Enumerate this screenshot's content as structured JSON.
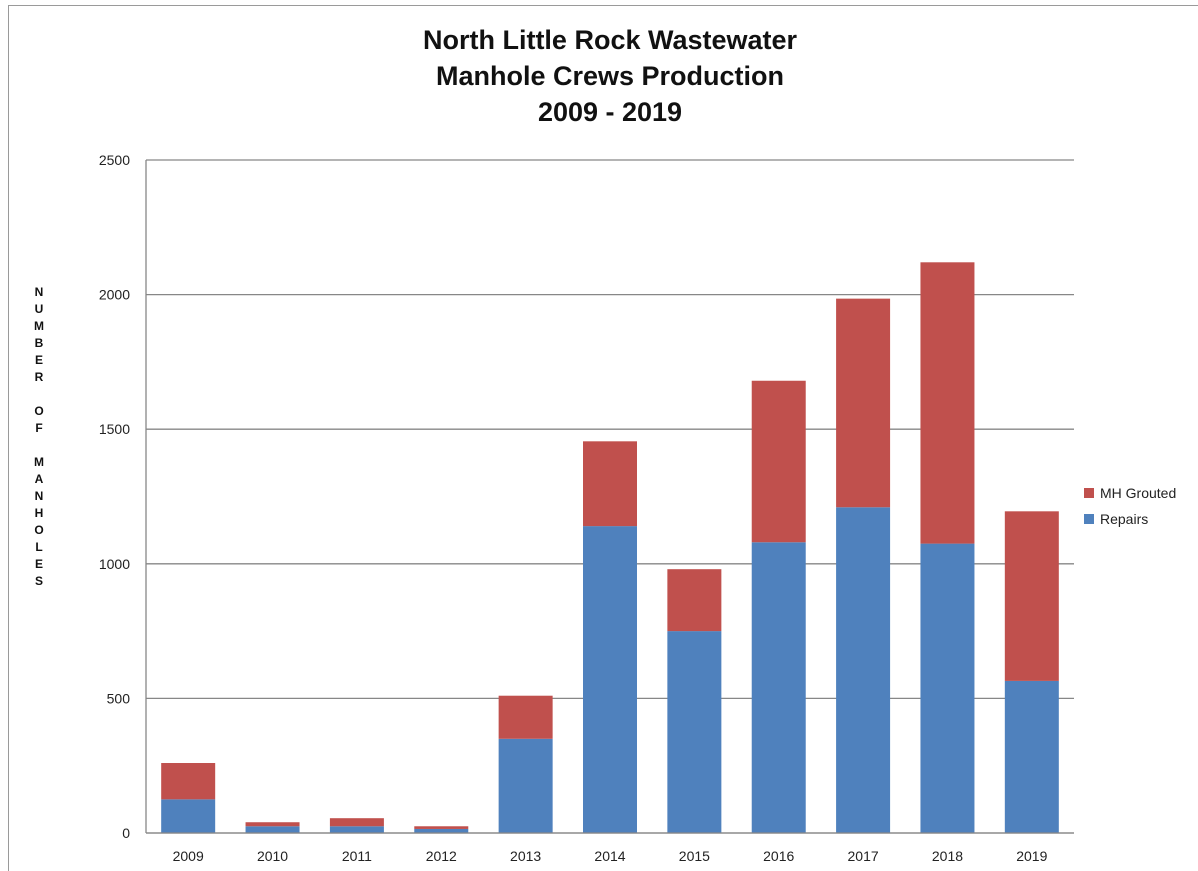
{
  "chart_data": {
    "type": "bar",
    "stacked": true,
    "title": [
      "North Little Rock Wastewater",
      "Manhole Crews Production",
      "2009 - 2019"
    ],
    "ylabel": "NUMBER OF MANHOLES",
    "ylabel_lines": [
      "N",
      "U",
      "M",
      "B",
      "E",
      "R",
      "",
      "O",
      "F",
      "",
      "M",
      "A",
      "N",
      "H",
      "O",
      "L",
      "E",
      "S"
    ],
    "xlabel": "",
    "categories": [
      "2009",
      "2010",
      "2011",
      "2012",
      "2013",
      "2014",
      "2015",
      "2016",
      "2017",
      "2018",
      "2019"
    ],
    "ylim": [
      0,
      2500
    ],
    "yticks": [
      "0",
      "500",
      "1000",
      "1500",
      "2000",
      "2500"
    ],
    "grid": true,
    "legend_position": "right",
    "series": [
      {
        "name": "Repairs",
        "color": "#4f81bd",
        "values": [
          125,
          25,
          25,
          15,
          350,
          1140,
          750,
          1080,
          1210,
          1075,
          565
        ]
      },
      {
        "name": "MH Grouted",
        "color": "#c0504d",
        "values": [
          135,
          15,
          30,
          10,
          160,
          315,
          230,
          600,
          775,
          1045,
          630
        ]
      }
    ]
  }
}
